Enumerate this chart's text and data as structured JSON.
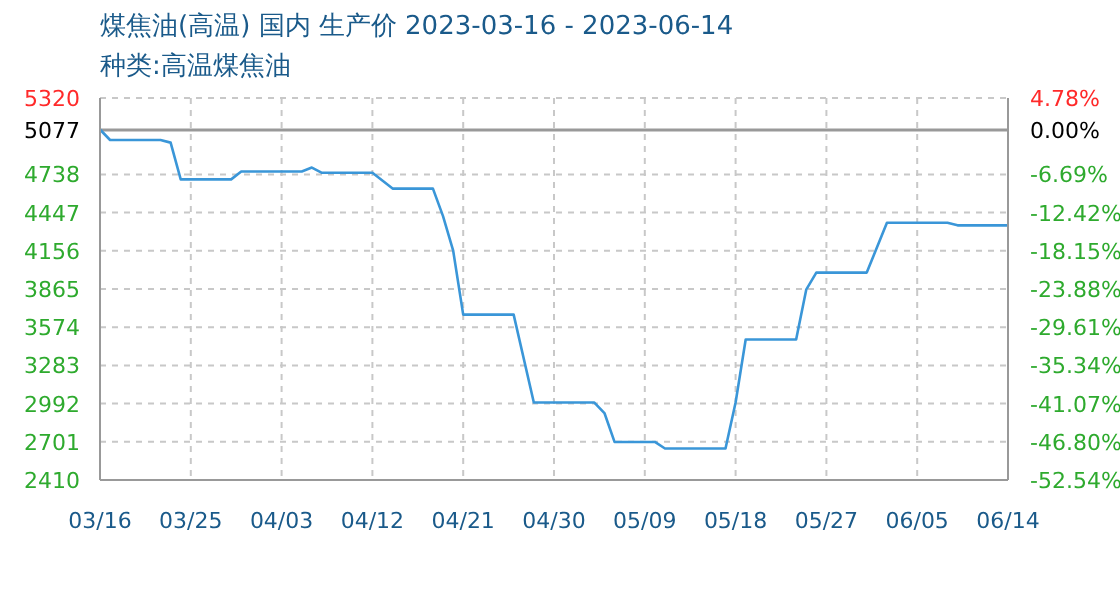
{
  "chart_data": {
    "type": "line",
    "title": "煤焦油(高温) 国内 生产价 2023-03-16 - 2023-06-14",
    "subtitle": "种类:高温煤焦油",
    "x": [
      "2023-03-16",
      "2023-03-17",
      "2023-03-22",
      "2023-03-23",
      "2023-03-24",
      "2023-03-29",
      "2023-03-30",
      "2023-04-05",
      "2023-04-06",
      "2023-04-07",
      "2023-04-12",
      "2023-04-14",
      "2023-04-18",
      "2023-04-19",
      "2023-04-20",
      "2023-04-21",
      "2023-04-26",
      "2023-04-28",
      "2023-05-04",
      "2023-05-05",
      "2023-05-06",
      "2023-05-10",
      "2023-05-11",
      "2023-05-17",
      "2023-05-18",
      "2023-05-19",
      "2023-05-24",
      "2023-05-25",
      "2023-05-26",
      "2023-05-31",
      "2023-06-02",
      "2023-06-08",
      "2023-06-09",
      "2023-06-14"
    ],
    "series": [
      {
        "color": "#3a96d8",
        "values": [
          5080,
          5000,
          5000,
          4980,
          4700,
          4700,
          4760,
          4760,
          4790,
          4750,
          4750,
          4630,
          4630,
          4420,
          4160,
          3670,
          3670,
          3000,
          3000,
          2920,
          2700,
          2700,
          2650,
          2650,
          3000,
          3480,
          3480,
          3860,
          3990,
          3990,
          4370,
          4370,
          4350,
          4350
        ]
      }
    ],
    "xlim": [
      "2023-03-16",
      "2023-06-14"
    ],
    "xticks": [
      {
        "value": "2023-03-16",
        "label": "03/16"
      },
      {
        "value": "2023-03-25",
        "label": "03/25"
      },
      {
        "value": "2023-04-03",
        "label": "04/03"
      },
      {
        "value": "2023-04-12",
        "label": "04/12"
      },
      {
        "value": "2023-04-21",
        "label": "04/21"
      },
      {
        "value": "2023-04-30",
        "label": "04/30"
      },
      {
        "value": "2023-05-09",
        "label": "05/09"
      },
      {
        "value": "2023-05-18",
        "label": "05/18"
      },
      {
        "value": "2023-05-27",
        "label": "05/27"
      },
      {
        "value": "2023-06-05",
        "label": "06/05"
      },
      {
        "value": "2023-06-14",
        "label": "06/14"
      }
    ],
    "ylim": [
      2410,
      5320
    ],
    "yticks": [
      2410,
      2701,
      2992,
      3283,
      3574,
      3865,
      4156,
      4447,
      4738,
      5077,
      5320
    ],
    "y2lim": [
      -52.54,
      4.78
    ],
    "y2ticks": [
      {
        "value": -52.54,
        "label": "-52.54%"
      },
      {
        "value": -46.8,
        "label": "-46.80%"
      },
      {
        "value": -41.07,
        "label": "-41.07%"
      },
      {
        "value": -35.34,
        "label": "-35.34%"
      },
      {
        "value": -29.61,
        "label": "-29.61%"
      },
      {
        "value": -23.88,
        "label": "-23.88%"
      },
      {
        "value": -18.15,
        "label": "-18.15%"
      },
      {
        "value": -12.42,
        "label": "-12.42%"
      },
      {
        "value": -6.69,
        "label": "-6.69%"
      },
      {
        "value": 0,
        "label": "0.00%"
      },
      {
        "value": 4.78,
        "label": "4.78%"
      }
    ],
    "ref_lines": [
      {
        "axis": "y",
        "value": 5077,
        "color": "#999999"
      }
    ],
    "grid": true,
    "legend": false,
    "marker": "none",
    "line_style": "solid"
  }
}
